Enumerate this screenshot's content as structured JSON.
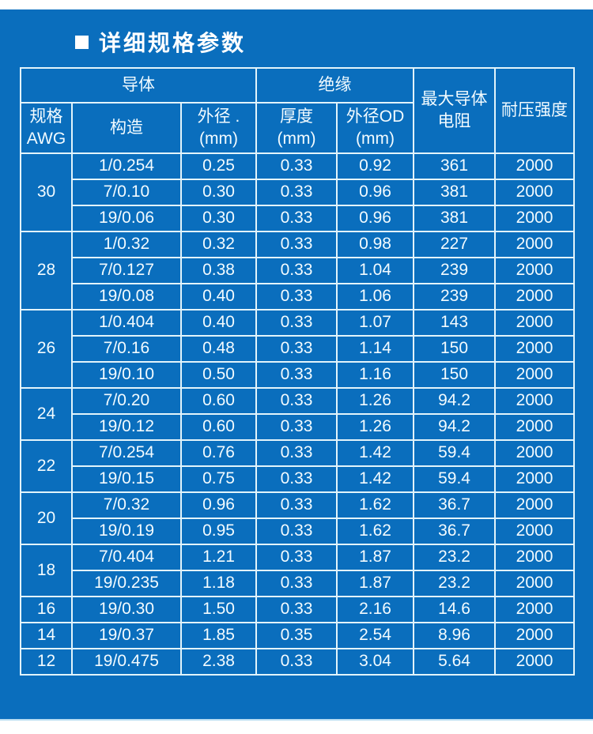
{
  "page": {
    "title_bullet": "■",
    "title": "详细规格参数"
  },
  "colors": {
    "panel_blue": "#0a6ebd",
    "table_border": "#e2f4fb",
    "table_text": "#f2fbff",
    "title_text": "#ffffff"
  },
  "table": {
    "header": {
      "conductor_group": "导体",
      "insulation_group": "绝缘",
      "max_conductor_resistance": "最大导体\n电阻",
      "withstand_voltage": "耐压强度",
      "spec_awg": "规格\nAWG",
      "construction": "构造",
      "conductor_od": "外径 .\n(mm)",
      "thickness": "厚度\n(mm)",
      "insulation_od": "外径OD\n(mm)"
    },
    "groups": [
      {
        "awg": "30",
        "rows": [
          [
            "1/0.254",
            "0.25",
            "0.33",
            "0.92",
            "361",
            "2000"
          ],
          [
            "7/0.10",
            "0.30",
            "0.33",
            "0.96",
            "381",
            "2000"
          ],
          [
            "19/0.06",
            "0.30",
            "0.33",
            "0.96",
            "381",
            "2000"
          ]
        ]
      },
      {
        "awg": "28",
        "rows": [
          [
            "1/0.32",
            "0.32",
            "0.33",
            "0.98",
            "227",
            "2000"
          ],
          [
            "7/0.127",
            "0.38",
            "0.33",
            "1.04",
            "239",
            "2000"
          ],
          [
            "19/0.08",
            "0.40",
            "0.33",
            "1.06",
            "239",
            "2000"
          ]
        ]
      },
      {
        "awg": "26",
        "rows": [
          [
            "1/0.404",
            "0.40",
            "0.33",
            "1.07",
            "143",
            "2000"
          ],
          [
            "7/0.16",
            "0.48",
            "0.33",
            "1.14",
            "150",
            "2000"
          ],
          [
            "19/0.10",
            "0.50",
            "0.33",
            "1.16",
            "150",
            "2000"
          ]
        ]
      },
      {
        "awg": "24",
        "rows": [
          [
            "7/0.20",
            "0.60",
            "0.33",
            "1.26",
            "94.2",
            "2000"
          ],
          [
            "19/0.12",
            "0.60",
            "0.33",
            "1.26",
            "94.2",
            "2000"
          ]
        ]
      },
      {
        "awg": "22",
        "rows": [
          [
            "7/0.254",
            "0.76",
            "0.33",
            "1.42",
            "59.4",
            "2000"
          ],
          [
            "19/0.15",
            "0.75",
            "0.33",
            "1.42",
            "59.4",
            "2000"
          ]
        ]
      },
      {
        "awg": "20",
        "rows": [
          [
            "7/0.32",
            "0.96",
            "0.33",
            "1.62",
            "36.7",
            "2000"
          ],
          [
            "19/0.19",
            "0.95",
            "0.33",
            "1.62",
            "36.7",
            "2000"
          ]
        ]
      },
      {
        "awg": "18",
        "rows": [
          [
            "7/0.404",
            "1.21",
            "0.33",
            "1.87",
            "23.2",
            "2000"
          ],
          [
            "19/0.235",
            "1.18",
            "0.33",
            "1.87",
            "23.2",
            "2000"
          ]
        ]
      },
      {
        "awg": "16",
        "rows": [
          [
            "19/0.30",
            "1.50",
            "0.33",
            "2.16",
            "14.6",
            "2000"
          ]
        ]
      },
      {
        "awg": "14",
        "rows": [
          [
            "19/0.37",
            "1.85",
            "0.35",
            "2.54",
            "8.96",
            "2000"
          ]
        ]
      },
      {
        "awg": "12",
        "rows": [
          [
            "19/0.475",
            "2.38",
            "0.33",
            "3.04",
            "5.64",
            "2000"
          ]
        ]
      }
    ]
  }
}
